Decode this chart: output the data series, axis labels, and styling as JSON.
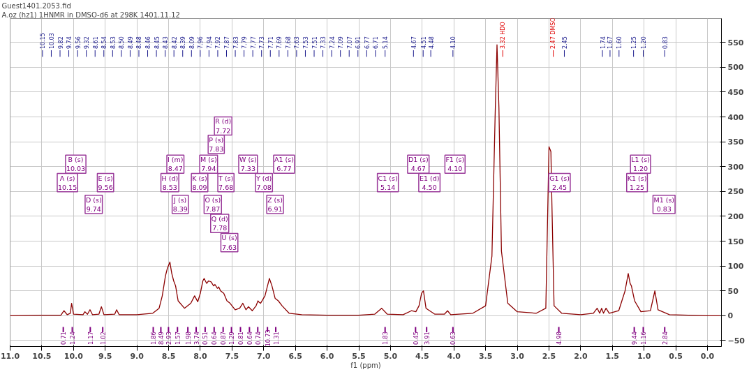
{
  "chart_data": {
    "type": "line",
    "title": "Guest1401.2053.fid",
    "subtitle": "A.oz (hz1) 1HNMR in DMSO-d6 at 298K 1401.11.12",
    "xlabel": "f1 (ppm)",
    "xlim": [
      11.0,
      -0.22
    ],
    "ylim": [
      -62,
      598
    ],
    "xticks": [
      {
        "value": 11.0,
        "label": "11.0"
      },
      10.5,
      {
        "value": 10.0,
        "label": "10.0"
      },
      9.5,
      {
        "value": 9.0,
        "label": "9.0"
      },
      8.5,
      {
        "value": 8.0,
        "label": "8.0"
      },
      7.5,
      {
        "value": 7.0,
        "label": "7.0"
      },
      6.5,
      {
        "value": 6.0,
        "label": "6.0"
      },
      5.5,
      {
        "value": 5.0,
        "label": "5.0"
      },
      4.5,
      {
        "value": 4.0,
        "label": "4.0"
      },
      3.5,
      {
        "value": 3.0,
        "label": "3.0"
      },
      2.5,
      {
        "value": 2.0,
        "label": "2.0"
      },
      1.5,
      {
        "value": 1.0,
        "label": "1.0"
      },
      0.5,
      {
        "value": 0.0,
        "label": "0.0"
      }
    ],
    "yticks": [
      -50,
      0,
      50,
      100,
      150,
      200,
      250,
      300,
      350,
      400,
      450,
      500,
      550
    ],
    "grid": true,
    "series": [
      {
        "color": "#8b0000",
        "x": [
          11.0,
          10.5,
          10.2,
          10.15,
          10.1,
          10.05,
          10.03,
          10.0,
          9.85,
          9.82,
          9.78,
          9.74,
          9.7,
          9.6,
          9.56,
          9.52,
          9.35,
          9.32,
          9.28,
          9.0,
          8.75,
          8.65,
          8.6,
          8.55,
          8.53,
          8.52,
          8.48,
          8.47,
          8.45,
          8.42,
          8.39,
          8.35,
          8.25,
          8.15,
          8.09,
          8.04,
          8.0,
          7.96,
          7.94,
          7.9,
          7.87,
          7.83,
          7.79,
          7.78,
          7.77,
          7.73,
          7.72,
          7.71,
          7.68,
          7.63,
          7.58,
          7.53,
          7.5,
          7.45,
          7.38,
          7.33,
          7.28,
          7.24,
          7.18,
          7.12,
          7.09,
          7.08,
          7.05,
          6.98,
          6.91,
          6.87,
          6.82,
          6.77,
          6.71,
          6.6,
          6.4,
          6.0,
          5.5,
          5.25,
          5.14,
          5.05,
          4.8,
          4.67,
          4.6,
          4.55,
          4.51,
          4.5,
          4.48,
          4.44,
          4.3,
          4.15,
          4.1,
          4.05,
          3.7,
          3.5,
          3.4,
          3.35,
          3.32,
          3.29,
          3.25,
          3.15,
          3.0,
          2.7,
          2.55,
          2.5,
          2.47,
          2.45,
          2.42,
          2.3,
          2.0,
          1.8,
          1.74,
          1.7,
          1.67,
          1.64,
          1.6,
          1.55,
          1.4,
          1.3,
          1.25,
          1.22,
          1.2,
          1.15,
          1.05,
          0.9,
          0.83,
          0.78,
          0.6,
          0.3,
          0.0,
          -0.2
        ],
        "values": [
          0,
          1,
          1,
          10,
          2,
          5,
          25,
          3,
          2,
          8,
          3,
          12,
          2,
          3,
          18,
          2,
          3,
          12,
          2,
          2,
          5,
          15,
          40,
          80,
          90,
          95,
          108,
          100,
          85,
          70,
          60,
          30,
          15,
          25,
          40,
          28,
          45,
          70,
          75,
          65,
          70,
          68,
          60,
          61,
          63,
          55,
          56,
          58,
          50,
          45,
          30,
          25,
          20,
          12,
          15,
          25,
          12,
          18,
          10,
          20,
          30,
          28,
          25,
          40,
          75,
          60,
          35,
          30,
          20,
          5,
          2,
          1,
          1,
          3,
          15,
          3,
          2,
          10,
          8,
          20,
          45,
          47,
          50,
          15,
          3,
          3,
          10,
          2,
          5,
          20,
          120,
          400,
          545,
          420,
          130,
          25,
          8,
          5,
          15,
          340,
          330,
          200,
          20,
          5,
          2,
          5,
          15,
          5,
          15,
          5,
          15,
          5,
          10,
          50,
          85,
          65,
          60,
          30,
          8,
          10,
          50,
          12,
          2,
          1,
          0,
          0
        ]
      }
    ],
    "annotations": [
      "10.15",
      "10.03",
      "9.82",
      "9.74",
      "9.56",
      "9.32",
      "8.61",
      "8.54",
      "8.53",
      "8.50",
      "8.49",
      "8.48",
      "8.46",
      "8.45",
      "8.43",
      "8.42",
      "8.39",
      "8.09",
      "7.96",
      "7.94",
      "7.92",
      "7.87",
      "7.83",
      "7.79",
      "7.77",
      "7.73",
      "7.71",
      "7.69",
      "7.68",
      "7.63",
      "7.53",
      "7.51",
      "7.33",
      "7.24",
      "7.09",
      "7.07",
      "6.91",
      "6.77",
      "6.71",
      "5.14",
      "4.67",
      "4.51",
      "4.48",
      "4.10",
      "3.32 HDO",
      "2.47 DMSO",
      "2.45",
      "1.74",
      "1.67",
      "1.60",
      "1.25",
      "1.20",
      "0.83",
      "R (d)\n7.72",
      "P (s)\n7.83",
      "B (s)\n10.03",
      "I (m)\n8.47",
      "M (s)\n7.94",
      "W (s)\n7.33",
      "A1 (s)\n6.77",
      "A (s)\n10.15",
      "E (s)\n9.56",
      "H (d)\n8.53",
      "K (s)\n8.09",
      "T (s)\n7.68",
      "Y (d)\n7.08",
      "D (s)\n9.74",
      "J (s)\n8.39",
      "O (s)\n7.87",
      "Z (s)\n6.91",
      "Q (d)\n7.78",
      "U (s)\n7.63",
      "D1 (s)\n4.67",
      "F1 (s)\n4.10",
      "L1 (s)\n1.20",
      "C1 (s)\n5.14",
      "E1 (d)\n4.50",
      "G1 (s)\n2.45",
      "K1 (s)\n1.25",
      "M1 (s)\n0.83",
      "0.71",
      "1.24",
      "1.17",
      "1.02",
      "1.86",
      "8.49",
      "2.93",
      "1.57",
      "1.98",
      "3.74",
      "0.51",
      "0.64",
      "0.87",
      "1.29",
      "0.81",
      "0.64",
      "0.74",
      "10.73",
      "1.31",
      "1.83",
      "0.45",
      "3.91",
      "0.63",
      "4.98",
      "9.44",
      "1.16",
      "2.84"
    ]
  }
}
